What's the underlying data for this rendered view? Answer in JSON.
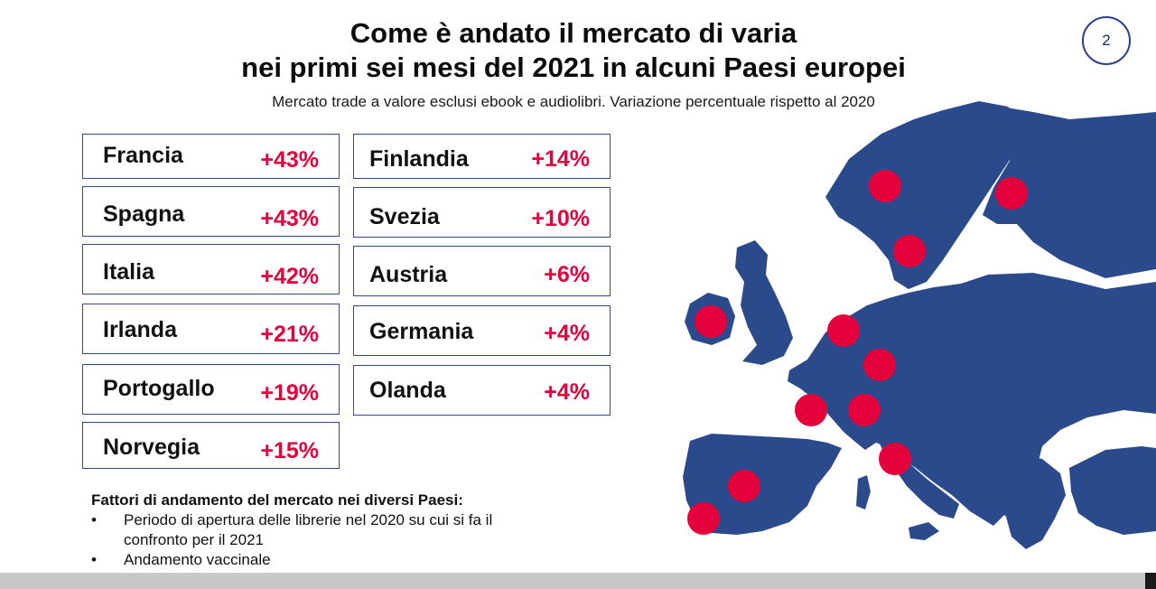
{
  "slide": {
    "title_line1": "Come è andato il mercato di varia",
    "title_line2": "nei primi sei mesi del 2021 in alcuni Paesi europei",
    "subtitle": "Mercato trade a valore esclusi ebook e audiolibri. Variazione percentuale rispetto al 2020",
    "page_number": "2"
  },
  "countries_left": [
    {
      "name": "Francia",
      "value": "+43%"
    },
    {
      "name": "Spagna",
      "value": "+43%"
    },
    {
      "name": "Italia",
      "value": "+42%"
    },
    {
      "name": "Irlanda",
      "value": "+21%"
    },
    {
      "name": "Portogallo",
      "value": "+19%"
    },
    {
      "name": "Norvegia",
      "value": "+15%"
    }
  ],
  "countries_right": [
    {
      "name": "Finlandia",
      "value": "+14%"
    },
    {
      "name": "Svezia",
      "value": "+10%"
    },
    {
      "name": "Austria",
      "value": "+6%"
    },
    {
      "name": "Germania",
      "value": "+4%"
    },
    {
      "name": "Olanda",
      "value": "+4%"
    }
  ],
  "notes": {
    "heading": "Fattori di andamento del mercato nei diversi Paesi:",
    "bullets": [
      {
        "line1": "Periodo di apertura delle librerie nel 2020 su cui si fa il",
        "line2": "confronto per il 2021"
      },
      {
        "line1": "Andamento vaccinale",
        "line2": ""
      }
    ]
  },
  "colors": {
    "map_fill": "#2b4a8c",
    "marker": "#e3003b",
    "value_text": "#e3003b",
    "box_border": "#2f4a9a"
  }
}
